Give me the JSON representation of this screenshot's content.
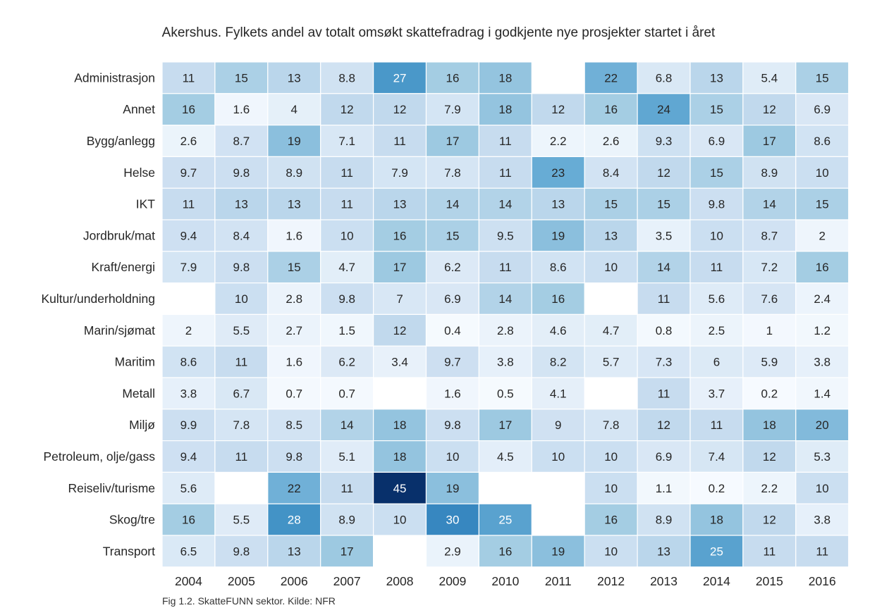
{
  "chart_data": {
    "type": "heatmap",
    "title": "Akershus. Fylkets andel av totalt omsøkt skattefradrag i godkjente nye prosjekter startet i året",
    "xlabel": "",
    "ylabel": "",
    "columns": [
      "2004",
      "2005",
      "2006",
      "2007",
      "2008",
      "2009",
      "2010",
      "2011",
      "2012",
      "2013",
      "2014",
      "2015",
      "2016"
    ],
    "rows": [
      "Administrasjon",
      "Annet",
      "Bygg/anlegg",
      "Helse",
      "IKT",
      "Jordbruk/mat",
      "Kraft/energi",
      "Kultur/underholdning",
      "Marin/sjømat",
      "Maritim",
      "Metall",
      "Miljø",
      "Petroleum, olje/gass",
      "Reiseliv/turisme",
      "Skog/tre",
      "Transport"
    ],
    "values": [
      [
        "11",
        "15",
        "13",
        "8.8",
        "27",
        "16",
        "18",
        null,
        "22",
        "6.8",
        "13",
        "5.4",
        "15"
      ],
      [
        "16",
        "1.6",
        "4",
        "12",
        "12",
        "7.9",
        "18",
        "12",
        "16",
        "24",
        "15",
        "12",
        "6.9"
      ],
      [
        "2.6",
        "8.7",
        "19",
        "7.1",
        "11",
        "17",
        "11",
        "2.2",
        "2.6",
        "9.3",
        "6.9",
        "17",
        "8.6"
      ],
      [
        "9.7",
        "9.8",
        "8.9",
        "11",
        "7.9",
        "7.8",
        "11",
        "23",
        "8.4",
        "12",
        "15",
        "8.9",
        "10"
      ],
      [
        "11",
        "13",
        "13",
        "11",
        "13",
        "14",
        "14",
        "13",
        "15",
        "15",
        "9.8",
        "14",
        "15"
      ],
      [
        "9.4",
        "8.4",
        "1.6",
        "10",
        "16",
        "15",
        "9.5",
        "19",
        "13",
        "3.5",
        "10",
        "8.7",
        "2"
      ],
      [
        "7.9",
        "9.8",
        "15",
        "4.7",
        "17",
        "6.2",
        "11",
        "8.6",
        "10",
        "14",
        "11",
        "7.2",
        "16"
      ],
      [
        null,
        "10",
        "2.8",
        "9.8",
        "7",
        "6.9",
        "14",
        "16",
        null,
        "11",
        "5.6",
        "7.6",
        "2.4"
      ],
      [
        "2",
        "5.5",
        "2.7",
        "1.5",
        "12",
        "0.4",
        "2.8",
        "4.6",
        "4.7",
        "0.8",
        "2.5",
        "1",
        "1.2"
      ],
      [
        "8.6",
        "11",
        "1.6",
        "6.2",
        "3.4",
        "9.7",
        "3.8",
        "8.2",
        "5.7",
        "7.3",
        "6",
        "5.9",
        "3.8"
      ],
      [
        "3.8",
        "6.7",
        "0.7",
        "0.7",
        null,
        "1.6",
        "0.5",
        "4.1",
        null,
        "11",
        "3.7",
        "0.2",
        "1.4"
      ],
      [
        "9.9",
        "7.8",
        "8.5",
        "14",
        "18",
        "9.8",
        "17",
        "9",
        "7.8",
        "12",
        "11",
        "18",
        "20"
      ],
      [
        "9.4",
        "11",
        "9.8",
        "5.1",
        "18",
        "10",
        "4.5",
        "10",
        "10",
        "6.9",
        "7.4",
        "12",
        "5.3"
      ],
      [
        "5.6",
        null,
        "22",
        "11",
        "45",
        "19",
        null,
        null,
        "10",
        "1.1",
        "0.2",
        "2.2",
        "10"
      ],
      [
        "16",
        "5.5",
        "28",
        "8.9",
        "10",
        "30",
        "25",
        null,
        "16",
        "8.9",
        "18",
        "12",
        "3.8"
      ],
      [
        "6.5",
        "9.8",
        "13",
        "17",
        null,
        "2.9",
        "16",
        "19",
        "10",
        "13",
        "25",
        "11",
        "11"
      ]
    ],
    "color_scale": "Blues",
    "vmin": 0,
    "vmax": 45,
    "colorbar": false,
    "grid": false
  },
  "caption": "Fig 1.2. SkatteFUNN sektor. Kilde: NFR"
}
